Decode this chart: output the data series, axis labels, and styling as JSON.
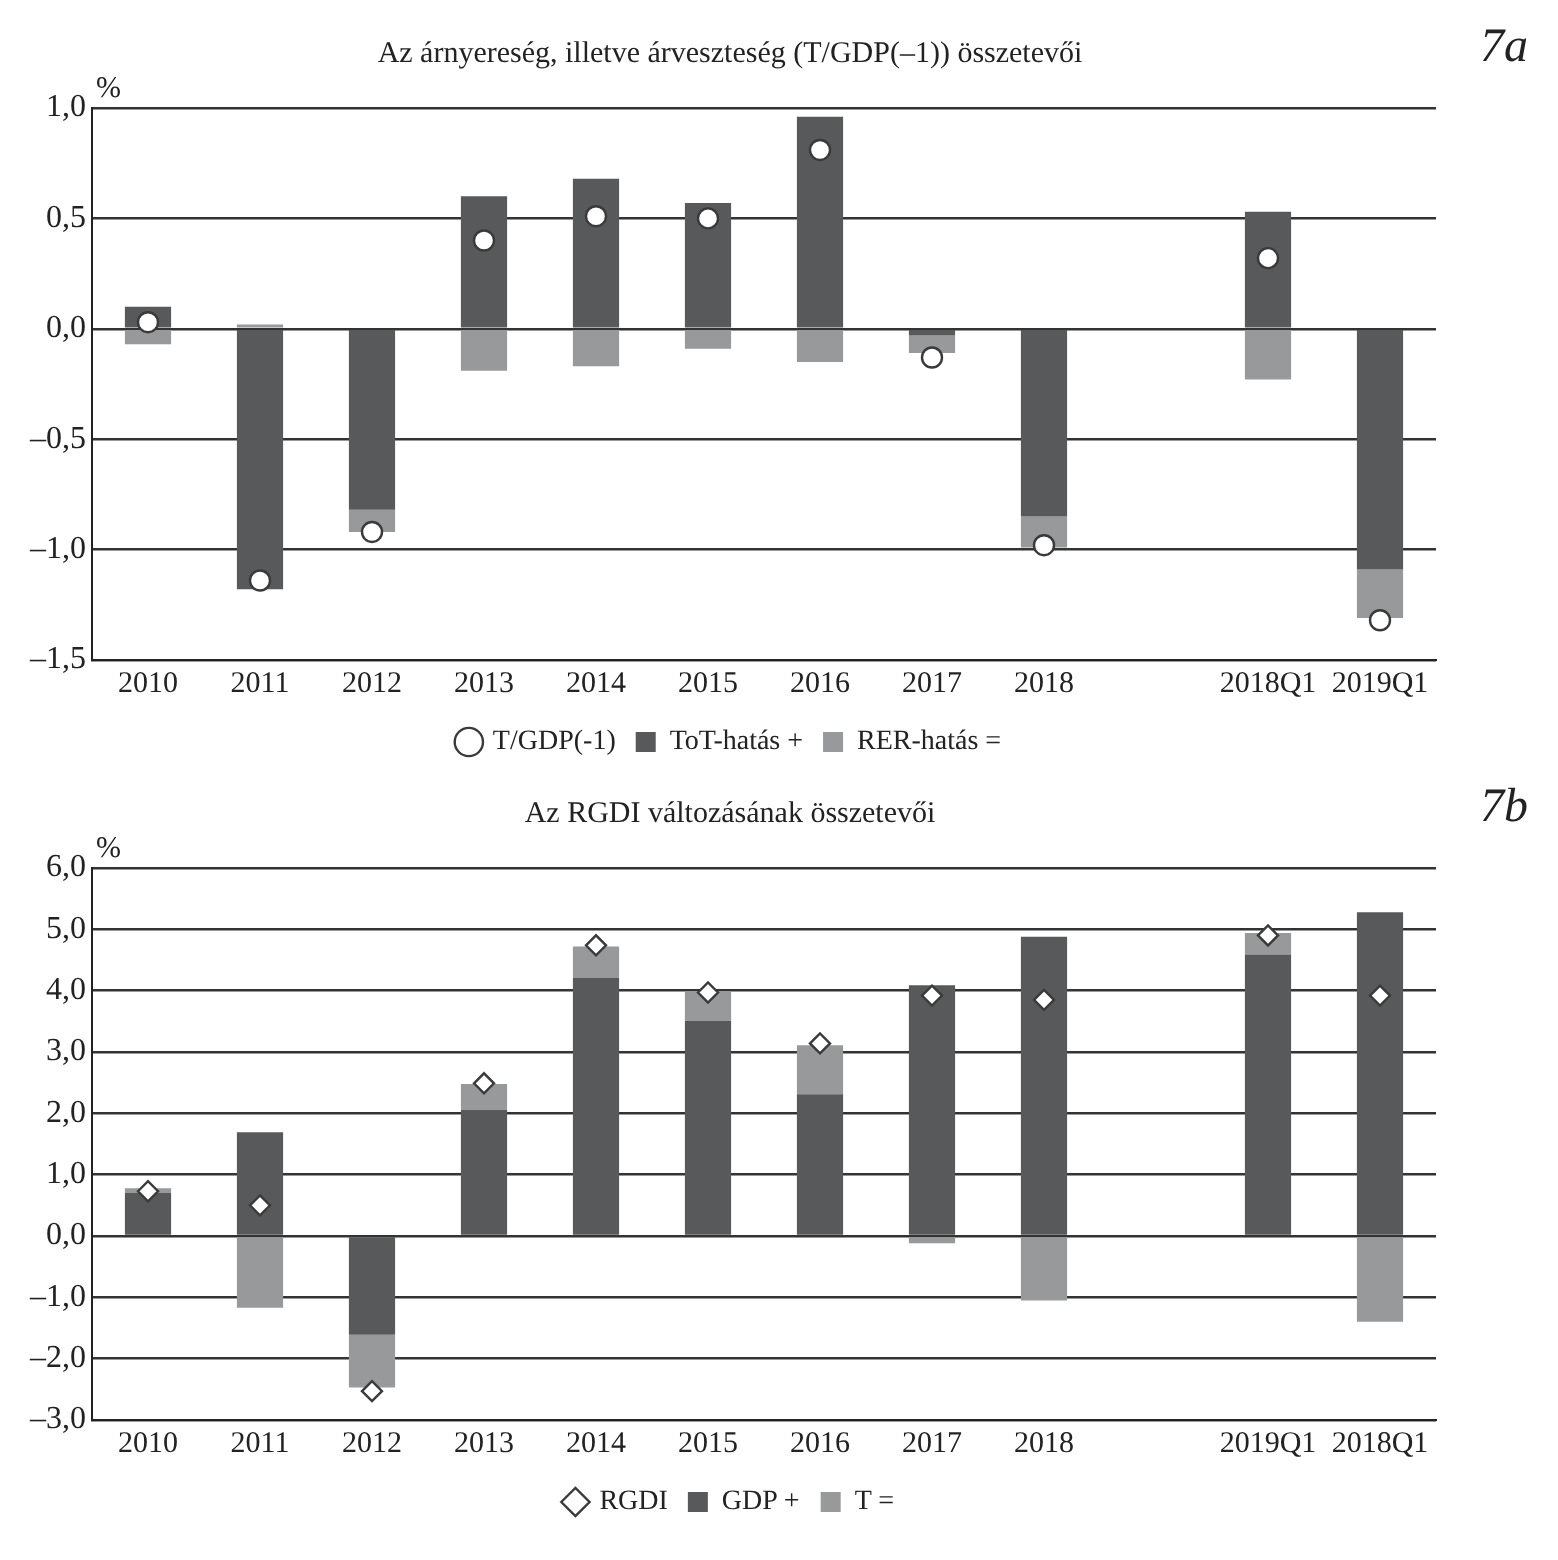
{
  "chart_data": [
    {
      "type": "bar",
      "title": "Az árnyereség, illetve árveszteség (T/GDP(–1)) összetevői",
      "ylabel": "%",
      "annotations": [
        "7a"
      ],
      "stacked": true,
      "grid": "y",
      "legend": "bottom",
      "categories": [
        "2010",
        "2011",
        "2012",
        "2013",
        "2014",
        "2015",
        "2016",
        "2017",
        "2018",
        null,
        "2018Q1",
        "2019Q1"
      ],
      "ylim": [
        -1.5,
        1.0
      ],
      "yticks": [
        {
          "value": -1.5,
          "label": "–1,5"
        },
        {
          "value": -1.0,
          "label": "–1,0"
        },
        {
          "value": -0.5,
          "label": "–0,5"
        },
        {
          "value": 0,
          "label": "0,0"
        },
        {
          "value": 0.5,
          "label": "0,5"
        },
        {
          "value": 1.0,
          "label": "1,0"
        }
      ],
      "series": [
        {
          "name": "ToT-hatás +",
          "color": "#58595b",
          "values": [
            0.1,
            -1.18,
            -0.82,
            0.6,
            0.68,
            0.57,
            0.96,
            -0.03,
            -0.85,
            null,
            0.53,
            -1.09
          ]
        },
        {
          "name": "RER-hatás =",
          "color": "#98999b",
          "values": [
            -0.07,
            0.02,
            -0.1,
            -0.19,
            -0.17,
            -0.09,
            -0.15,
            -0.08,
            -0.14,
            null,
            -0.23,
            -0.22
          ]
        },
        {
          "name": "T/GDP(-1)",
          "type": "scatter",
          "marker": "circle",
          "color": "#ffffff",
          "values": [
            0.03,
            -1.14,
            -0.92,
            0.4,
            0.51,
            0.5,
            0.81,
            -0.13,
            -0.98,
            null,
            0.32,
            -1.32
          ]
        }
      ]
    },
    {
      "type": "bar",
      "title": "Az RGDI változásának összetevői",
      "ylabel": "%",
      "annotations": [
        "7b"
      ],
      "stacked": true,
      "grid": "y",
      "legend": "bottom",
      "categories": [
        "2010",
        "2011",
        "2012",
        "2013",
        "2014",
        "2015",
        "2016",
        "2017",
        "2018",
        null,
        "2019Q1",
        "2018Q1"
      ],
      "ylim": [
        -3.0,
        6.0
      ],
      "yticks": [
        {
          "value": -3,
          "label": "–3,0"
        },
        {
          "value": -2,
          "label": "–2,0"
        },
        {
          "value": -1,
          "label": "–1,0"
        },
        {
          "value": 0,
          "label": "0,0"
        },
        {
          "value": 1,
          "label": "1,0"
        },
        {
          "value": 2,
          "label": "2,0"
        },
        {
          "value": 3,
          "label": "3,0"
        },
        {
          "value": 4,
          "label": "4,0"
        },
        {
          "value": 5,
          "label": "5,0"
        },
        {
          "value": 6,
          "label": "6,0"
        }
      ],
      "series": [
        {
          "name": "GDP +",
          "color": "#58595b",
          "values": [
            0.7,
            1.69,
            -1.61,
            2.06,
            4.21,
            3.51,
            2.31,
            4.09,
            4.88,
            null,
            4.59,
            5.28
          ]
        },
        {
          "name": "T =",
          "color": "#98999b",
          "values": [
            0.08,
            -1.17,
            -0.86,
            0.42,
            0.51,
            0.47,
            0.8,
            -0.12,
            -1.05,
            null,
            0.35,
            -1.4
          ]
        },
        {
          "name": "RGDI",
          "type": "scatter",
          "marker": "diamond",
          "color": "#ffffff",
          "values": [
            0.73,
            0.5,
            -2.53,
            2.49,
            4.74,
            3.97,
            3.14,
            3.92,
            3.85,
            null,
            4.9,
            3.92
          ]
        }
      ]
    }
  ]
}
